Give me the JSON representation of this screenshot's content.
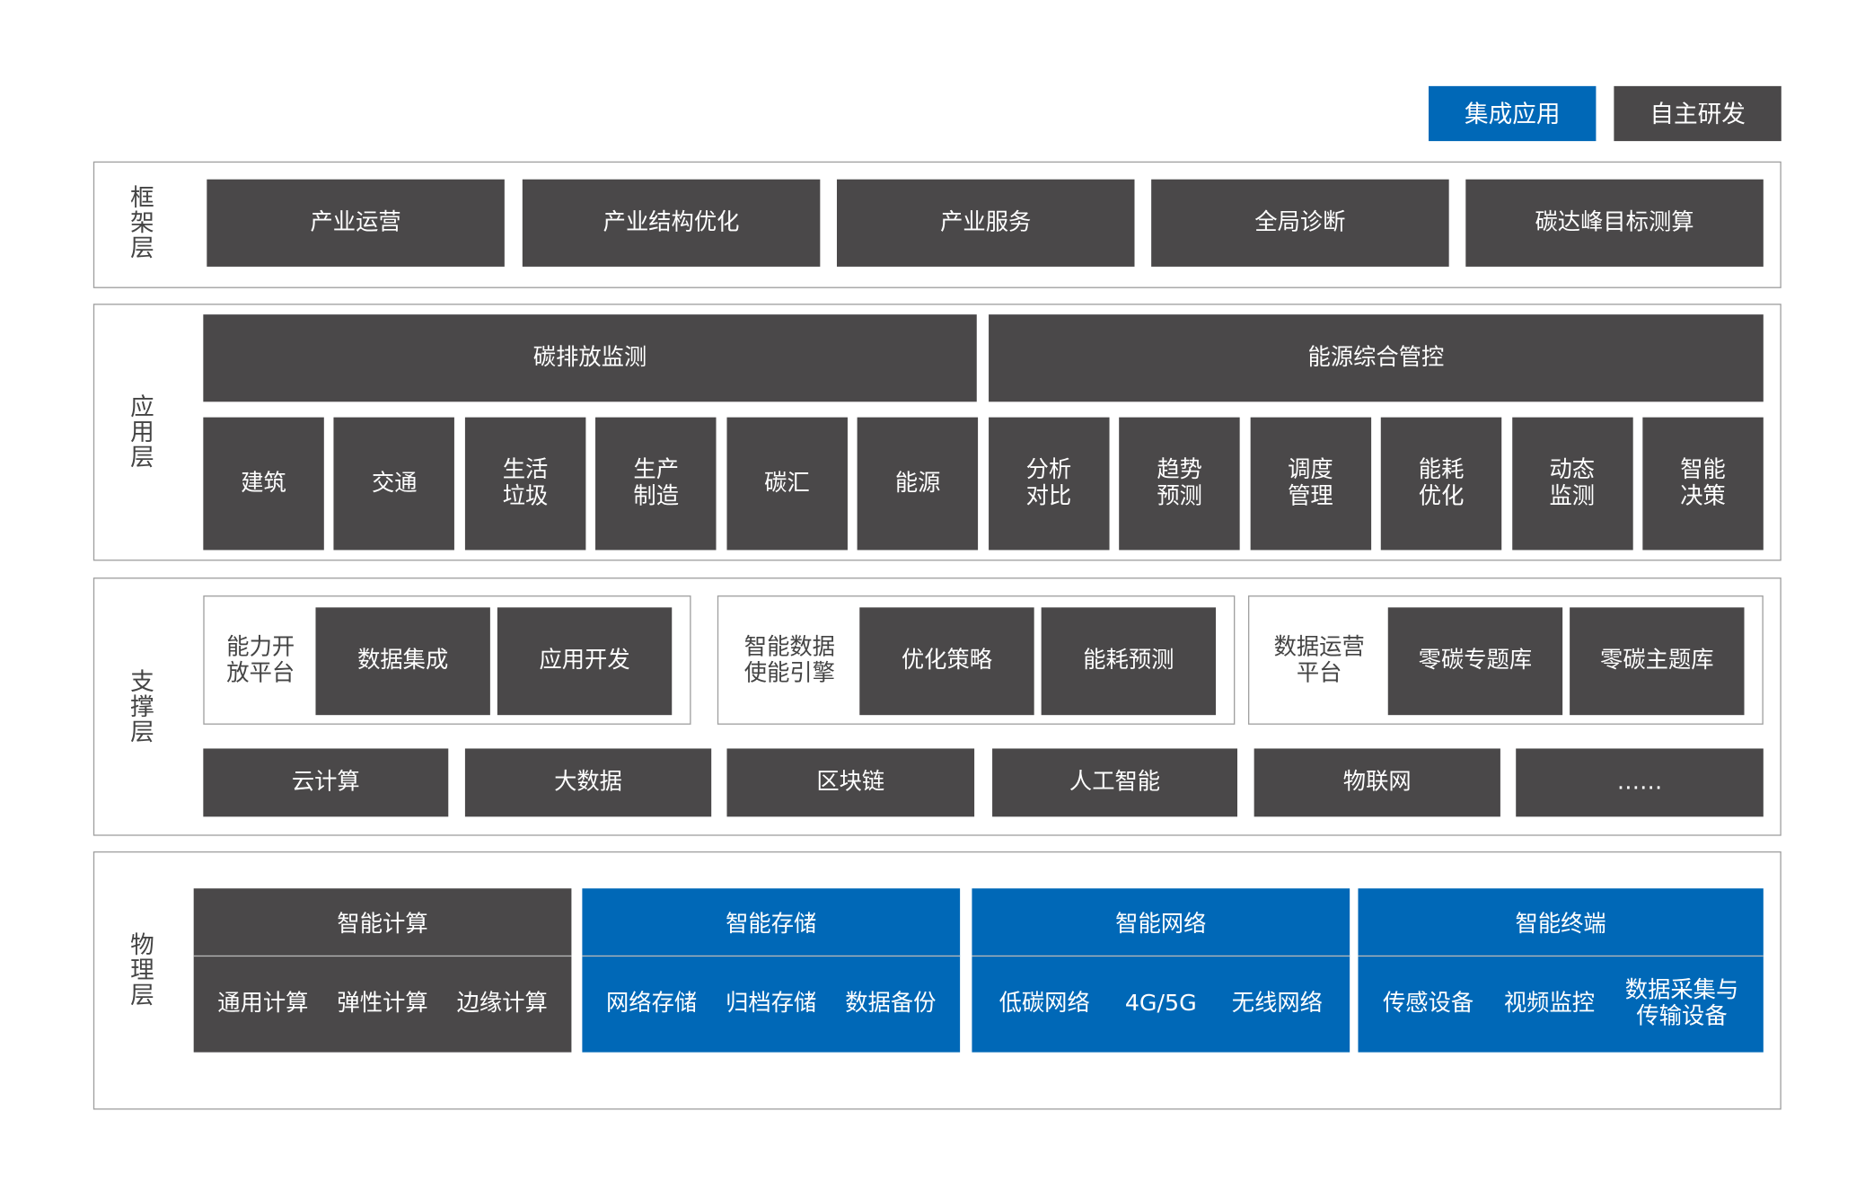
{
  "legend": {
    "integrated": "集成应用",
    "self_developed": "自主研发",
    "integrated_color": "#0068b7",
    "self_developed_color": "#4a4849"
  },
  "framework": {
    "label": "框架层",
    "items": [
      "产业运营",
      "产业结构优化",
      "产业服务",
      "全局诊断",
      "碳达峰目标测算"
    ]
  },
  "application": {
    "label": "应用层",
    "groups": [
      "碳排放监测",
      "能源综合管控"
    ],
    "items": [
      "建筑",
      "交通",
      "生活\n垃圾",
      "生产\n制造",
      "碳汇",
      "能源",
      "分析\n对比",
      "趋势\n预测",
      "调度\n管理",
      "能耗\n优化",
      "动态\n监测",
      "智能\n决策"
    ]
  },
  "support": {
    "label": "支撑层",
    "platforms": [
      {
        "name": "能力开\n放平台",
        "items": [
          "数据集成",
          "应用开发"
        ]
      },
      {
        "name": "智能数据\n使能引擎",
        "items": [
          "优化策略",
          "能耗预测"
        ]
      },
      {
        "name": "数据运营\n平台",
        "items": [
          "零碳专题库",
          "零碳主题库"
        ]
      }
    ],
    "tech": [
      "云计算",
      "大数据",
      "区块链",
      "人工智能",
      "物联网",
      "……"
    ]
  },
  "physical": {
    "label": "物理层",
    "blocks": [
      {
        "title": "智能计算",
        "items": [
          "通用计算",
          "弹性计算",
          "边缘计算"
        ],
        "color": "#4a4849"
      },
      {
        "title": "智能存储",
        "items": [
          "网络存储",
          "归档存储",
          "数据备份"
        ],
        "color": "#0068b7"
      },
      {
        "title": "智能网络",
        "items": [
          "低碳网络",
          "4G/5G",
          "无线网络"
        ],
        "color": "#0068b7"
      },
      {
        "title": "智能终端",
        "items": [
          "传感设备",
          "视频监控",
          "数据采集与\n传输设备"
        ],
        "color": "#0068b7"
      }
    ]
  }
}
